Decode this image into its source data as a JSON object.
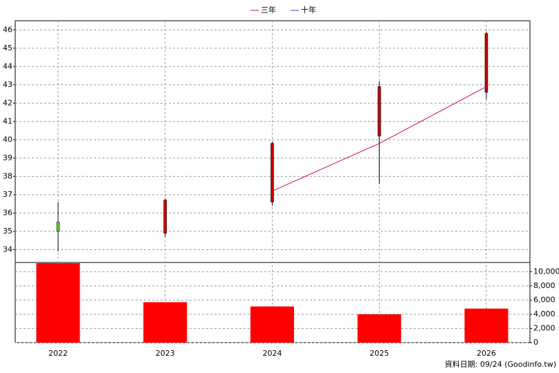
{
  "chart_data": {
    "type": "candlestick",
    "categories": [
      "2022",
      "2023",
      "2024",
      "2025",
      "2026"
    ],
    "open": [
      35.5,
      34.9,
      36.6,
      40.2,
      42.6
    ],
    "high": [
      36.6,
      36.8,
      39.9,
      43.2,
      45.9
    ],
    "low": [
      33.9,
      34.7,
      36.4,
      37.6,
      42.2
    ],
    "close": [
      35.0,
      36.7,
      39.8,
      42.9,
      45.8
    ],
    "up_color": "#cc0000",
    "down_color": "#66cc33",
    "ylim": [
      33.3,
      46.5
    ],
    "yticks": [
      34,
      35,
      36,
      37,
      38,
      39,
      40,
      41,
      42,
      43,
      44,
      45,
      46
    ],
    "grid": true,
    "series": [
      {
        "name": "三年",
        "color": "#cc0066",
        "values": [
          null,
          null,
          37.2,
          39.8,
          42.9
        ]
      },
      {
        "name": "十年",
        "color": "#6633cc",
        "values": [
          null,
          null,
          null,
          null,
          null
        ]
      }
    ],
    "volume": {
      "values": [
        11200,
        5700,
        5100,
        4000,
        4800
      ],
      "color": "#ff0000",
      "ylim": [
        0,
        11300
      ],
      "yticks": [
        0,
        {
          "value": 2000,
          "label": "2,000"
        },
        {
          "value": 4000,
          "label": "4,000"
        },
        {
          "value": 6000,
          "label": "6,000"
        },
        {
          "value": 8000,
          "label": "8,000"
        },
        {
          "value": 10000,
          "label": "10,000"
        }
      ]
    },
    "footer": "資料日期: 09/24  (Goodinfo.tw)"
  }
}
